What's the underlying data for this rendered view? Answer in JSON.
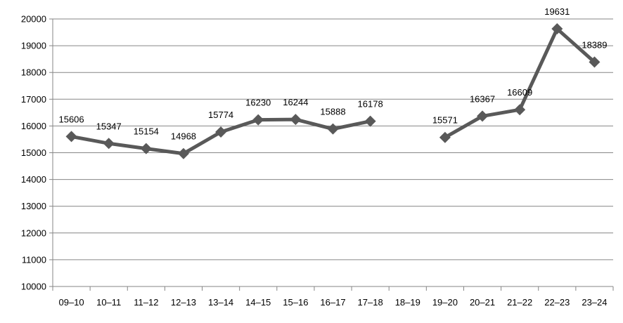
{
  "chart_data": {
    "type": "line",
    "categories": [
      "09–10",
      "10–11",
      "11–12",
      "12–13",
      "13–14",
      "14–15",
      "15–16",
      "16–17",
      "17–18",
      "18–19",
      "19–20",
      "20–21",
      "21–22",
      "22–23",
      "23–24"
    ],
    "series": [
      {
        "values": [
          15606,
          15347,
          15154,
          14968,
          15774,
          16230,
          16244,
          15888,
          16178,
          null,
          15571,
          16367,
          16609,
          19631,
          18389
        ]
      }
    ],
    "ylim": [
      10000,
      20000
    ],
    "yticks": [
      10000,
      11000,
      12000,
      13000,
      14000,
      15000,
      16000,
      17000,
      18000,
      19000,
      20000
    ],
    "grid": true,
    "legend": "none",
    "colors": {
      "line": "#595959",
      "marker": "#595959",
      "grid": "#868686",
      "axis": "#868686"
    }
  }
}
